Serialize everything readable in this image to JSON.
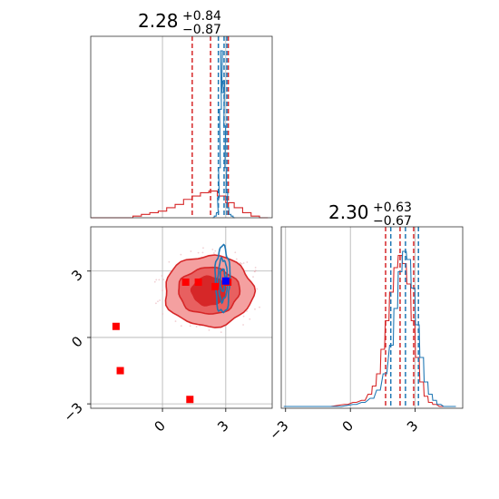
{
  "chart_data": [
    {
      "panel": "top-left",
      "type": "histogram",
      "title": {
        "value": "2.28",
        "plus": "+0.84",
        "minus": "−0.87"
      },
      "xlim": [
        -3.4,
        5.2
      ],
      "grid": true,
      "xticks": [
        0,
        3
      ],
      "bin_edges": [
        -3.4,
        -3.0,
        -2.6,
        -2.2,
        -1.8,
        -1.4,
        -1.0,
        -0.6,
        -0.2,
        0.2,
        0.6,
        1.0,
        1.4,
        1.8,
        2.2,
        2.6,
        3.0,
        3.4,
        3.8,
        4.2,
        4.6,
        5.0
      ],
      "series": [
        {
          "color": "#d62728",
          "counts": [
            0,
            0,
            0,
            0,
            0,
            1,
            2,
            3,
            4,
            6,
            8,
            11,
            13,
            15,
            16,
            13,
            9,
            6,
            3,
            1,
            0
          ],
          "quantile_lines": [
            1.41,
            2.28,
            3.12
          ]
        },
        {
          "color": "#1f77b4",
          "style": "fine",
          "x": [
            2.4,
            2.5,
            2.6,
            2.65,
            2.7,
            2.75,
            2.8,
            2.85,
            2.9,
            2.95,
            3.0,
            3.05,
            3.1,
            3.2,
            3.3,
            3.4
          ],
          "counts": [
            0,
            1,
            3,
            12,
            30,
            65,
            100,
            75,
            82,
            55,
            30,
            15,
            6,
            2,
            1,
            0
          ],
          "quantile_lines": [
            2.65,
            2.92,
            3.05
          ]
        }
      ]
    },
    {
      "panel": "bottom-left",
      "type": "contour-scatter",
      "xlim": [
        -3.4,
        5.2
      ],
      "ylim": [
        -3.2,
        5.0
      ],
      "grid": true,
      "xticks": [
        0,
        3
      ],
      "yticks": [
        -3,
        0,
        3
      ],
      "xtick_labels": [
        "0",
        "3"
      ],
      "ytick_labels": [
        "−3",
        "0",
        "3"
      ],
      "red_contours": {
        "center": [
          2.2,
          2.1
        ],
        "radii": [
          [
            2.1,
            1.6
          ],
          [
            1.45,
            1.05
          ],
          [
            0.8,
            0.65
          ]
        ],
        "fills": [
          "#f4a0a0",
          "#e86060",
          "#d62728"
        ]
      },
      "blue_contours": {
        "center": [
          2.85,
          2.6
        ],
        "radii": [
          [
            0.35,
            1.5
          ],
          [
            0.22,
            0.95
          ],
          [
            0.12,
            0.5
          ]
        ]
      },
      "red_markers": [
        [
          -2.2,
          0.5
        ],
        [
          -2.0,
          -1.5
        ],
        [
          1.3,
          -2.8
        ],
        [
          1.1,
          2.5
        ],
        [
          1.7,
          2.5
        ],
        [
          2.5,
          2.3
        ],
        [
          3.1,
          2.5
        ]
      ],
      "blue_markers": [
        [
          3.0,
          2.55
        ]
      ]
    },
    {
      "panel": "bottom-right",
      "type": "histogram",
      "title": {
        "value": "2.30",
        "plus": "+0.63",
        "minus": "−0.67"
      },
      "xlim": [
        -3.2,
        5.2
      ],
      "grid": true,
      "xticks": [
        -3,
        0,
        3
      ],
      "xtick_labels": [
        "−3",
        "0",
        "3"
      ],
      "series": [
        {
          "color": "#d62728",
          "x": [
            -3.0,
            -1.0,
            -0.2,
            0.2,
            0.6,
            0.9,
            1.1,
            1.3,
            1.5,
            1.7,
            1.9,
            2.1,
            2.3,
            2.5,
            2.7,
            2.9,
            3.1,
            3.3,
            3.5,
            3.7,
            3.9,
            4.2,
            4.8
          ],
          "counts": [
            0,
            0,
            1,
            2,
            3,
            6,
            10,
            16,
            28,
            42,
            56,
            68,
            74,
            70,
            60,
            42,
            24,
            12,
            5,
            2,
            1,
            0,
            0
          ],
          "quantile_lines": [
            1.63,
            2.3,
            2.93
          ]
        },
        {
          "color": "#1f77b4",
          "x": [
            -3.0,
            -0.5,
            0.2,
            0.6,
            1.0,
            1.3,
            1.6,
            1.9,
            2.1,
            2.3,
            2.5,
            2.7,
            2.9,
            3.1,
            3.3,
            3.5,
            3.7,
            3.9,
            4.1,
            4.4,
            4.8
          ],
          "counts": [
            0,
            0,
            1,
            2,
            4,
            8,
            16,
            30,
            48,
            66,
            76,
            72,
            58,
            40,
            24,
            12,
            6,
            3,
            1,
            0,
            0
          ],
          "quantile_lines": [
            1.87,
            2.55,
            3.15
          ]
        }
      ]
    }
  ]
}
